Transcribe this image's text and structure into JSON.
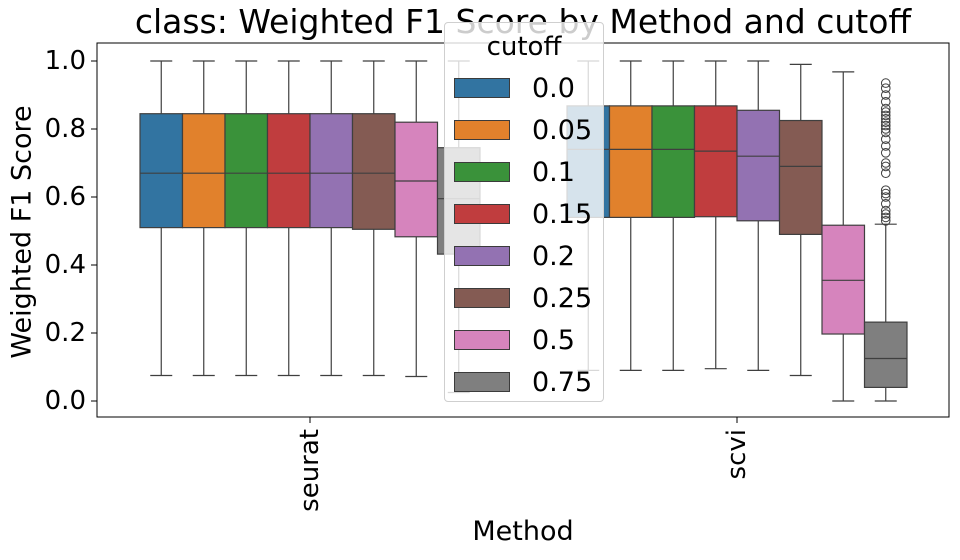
{
  "chart_data": {
    "type": "boxplot",
    "title": "class: Weighted F1 Score by Method and cutoff",
    "xlabel": "Method",
    "ylabel": "Weighted F1 Score",
    "ylim": [
      -0.05,
      1.05
    ],
    "yticks": [
      "0.0",
      "0.2",
      "0.4",
      "0.6",
      "0.8",
      "1.0"
    ],
    "categories": [
      "seurat",
      "scvi"
    ],
    "legend_title": "cutoff",
    "legend_placement": "top-center",
    "grid": false,
    "series": [
      {
        "name": "0.0",
        "color": "#3274a1",
        "boxes": [
          {
            "whislo": 0.075,
            "q1": 0.51,
            "med": 0.67,
            "q3": 0.845,
            "whishi": 1.0,
            "fliers": []
          },
          {
            "whislo": 0.09,
            "q1": 0.54,
            "med": 0.74,
            "q3": 0.868,
            "whishi": 1.0,
            "fliers": []
          }
        ]
      },
      {
        "name": "0.05",
        "color": "#e1812c",
        "boxes": [
          {
            "whislo": 0.075,
            "q1": 0.51,
            "med": 0.67,
            "q3": 0.845,
            "whishi": 1.0,
            "fliers": []
          },
          {
            "whislo": 0.09,
            "q1": 0.54,
            "med": 0.74,
            "q3": 0.868,
            "whishi": 1.0,
            "fliers": []
          }
        ]
      },
      {
        "name": "0.1",
        "color": "#3a923a",
        "boxes": [
          {
            "whislo": 0.075,
            "q1": 0.51,
            "med": 0.67,
            "q3": 0.845,
            "whishi": 1.0,
            "fliers": []
          },
          {
            "whislo": 0.09,
            "q1": 0.54,
            "med": 0.74,
            "q3": 0.868,
            "whishi": 1.0,
            "fliers": []
          }
        ]
      },
      {
        "name": "0.15",
        "color": "#c03d3e",
        "boxes": [
          {
            "whislo": 0.075,
            "q1": 0.51,
            "med": 0.67,
            "q3": 0.845,
            "whishi": 1.0,
            "fliers": []
          },
          {
            "whislo": 0.095,
            "q1": 0.542,
            "med": 0.735,
            "q3": 0.868,
            "whishi": 1.0,
            "fliers": []
          }
        ]
      },
      {
        "name": "0.2",
        "color": "#9372b2",
        "boxes": [
          {
            "whislo": 0.075,
            "q1": 0.51,
            "med": 0.67,
            "q3": 0.845,
            "whishi": 1.0,
            "fliers": []
          },
          {
            "whislo": 0.09,
            "q1": 0.53,
            "med": 0.72,
            "q3": 0.855,
            "whishi": 1.0,
            "fliers": []
          }
        ]
      },
      {
        "name": "0.25",
        "color": "#845b53",
        "boxes": [
          {
            "whislo": 0.075,
            "q1": 0.505,
            "med": 0.67,
            "q3": 0.845,
            "whishi": 1.0,
            "fliers": []
          },
          {
            "whislo": 0.075,
            "q1": 0.49,
            "med": 0.69,
            "q3": 0.825,
            "whishi": 0.99,
            "fliers": []
          }
        ]
      },
      {
        "name": "0.5",
        "color": "#d684bd",
        "boxes": [
          {
            "whislo": 0.072,
            "q1": 0.483,
            "med": 0.647,
            "q3": 0.82,
            "whishi": 1.0,
            "fliers": []
          },
          {
            "whislo": 0.0,
            "q1": 0.197,
            "med": 0.355,
            "q3": 0.517,
            "whishi": 0.968,
            "fliers": []
          }
        ]
      },
      {
        "name": "0.75",
        "color": "#7f7f7f",
        "boxes": [
          {
            "whislo": 0.025,
            "q1": 0.432,
            "med": 0.595,
            "q3": 0.745,
            "whishi": 1.0,
            "fliers": []
          },
          {
            "whislo": 0.0,
            "q1": 0.04,
            "med": 0.125,
            "q3": 0.232,
            "whishi": 0.52,
            "fliers": [
              0.53,
              0.54,
              0.55,
              0.56,
              0.58,
              0.6,
              0.61,
              0.62,
              0.67,
              0.69,
              0.7,
              0.73,
              0.75,
              0.77,
              0.79,
              0.8,
              0.81,
              0.82,
              0.83,
              0.84,
              0.85,
              0.86,
              0.88,
              0.9,
              0.92,
              0.935
            ]
          }
        ]
      }
    ]
  }
}
